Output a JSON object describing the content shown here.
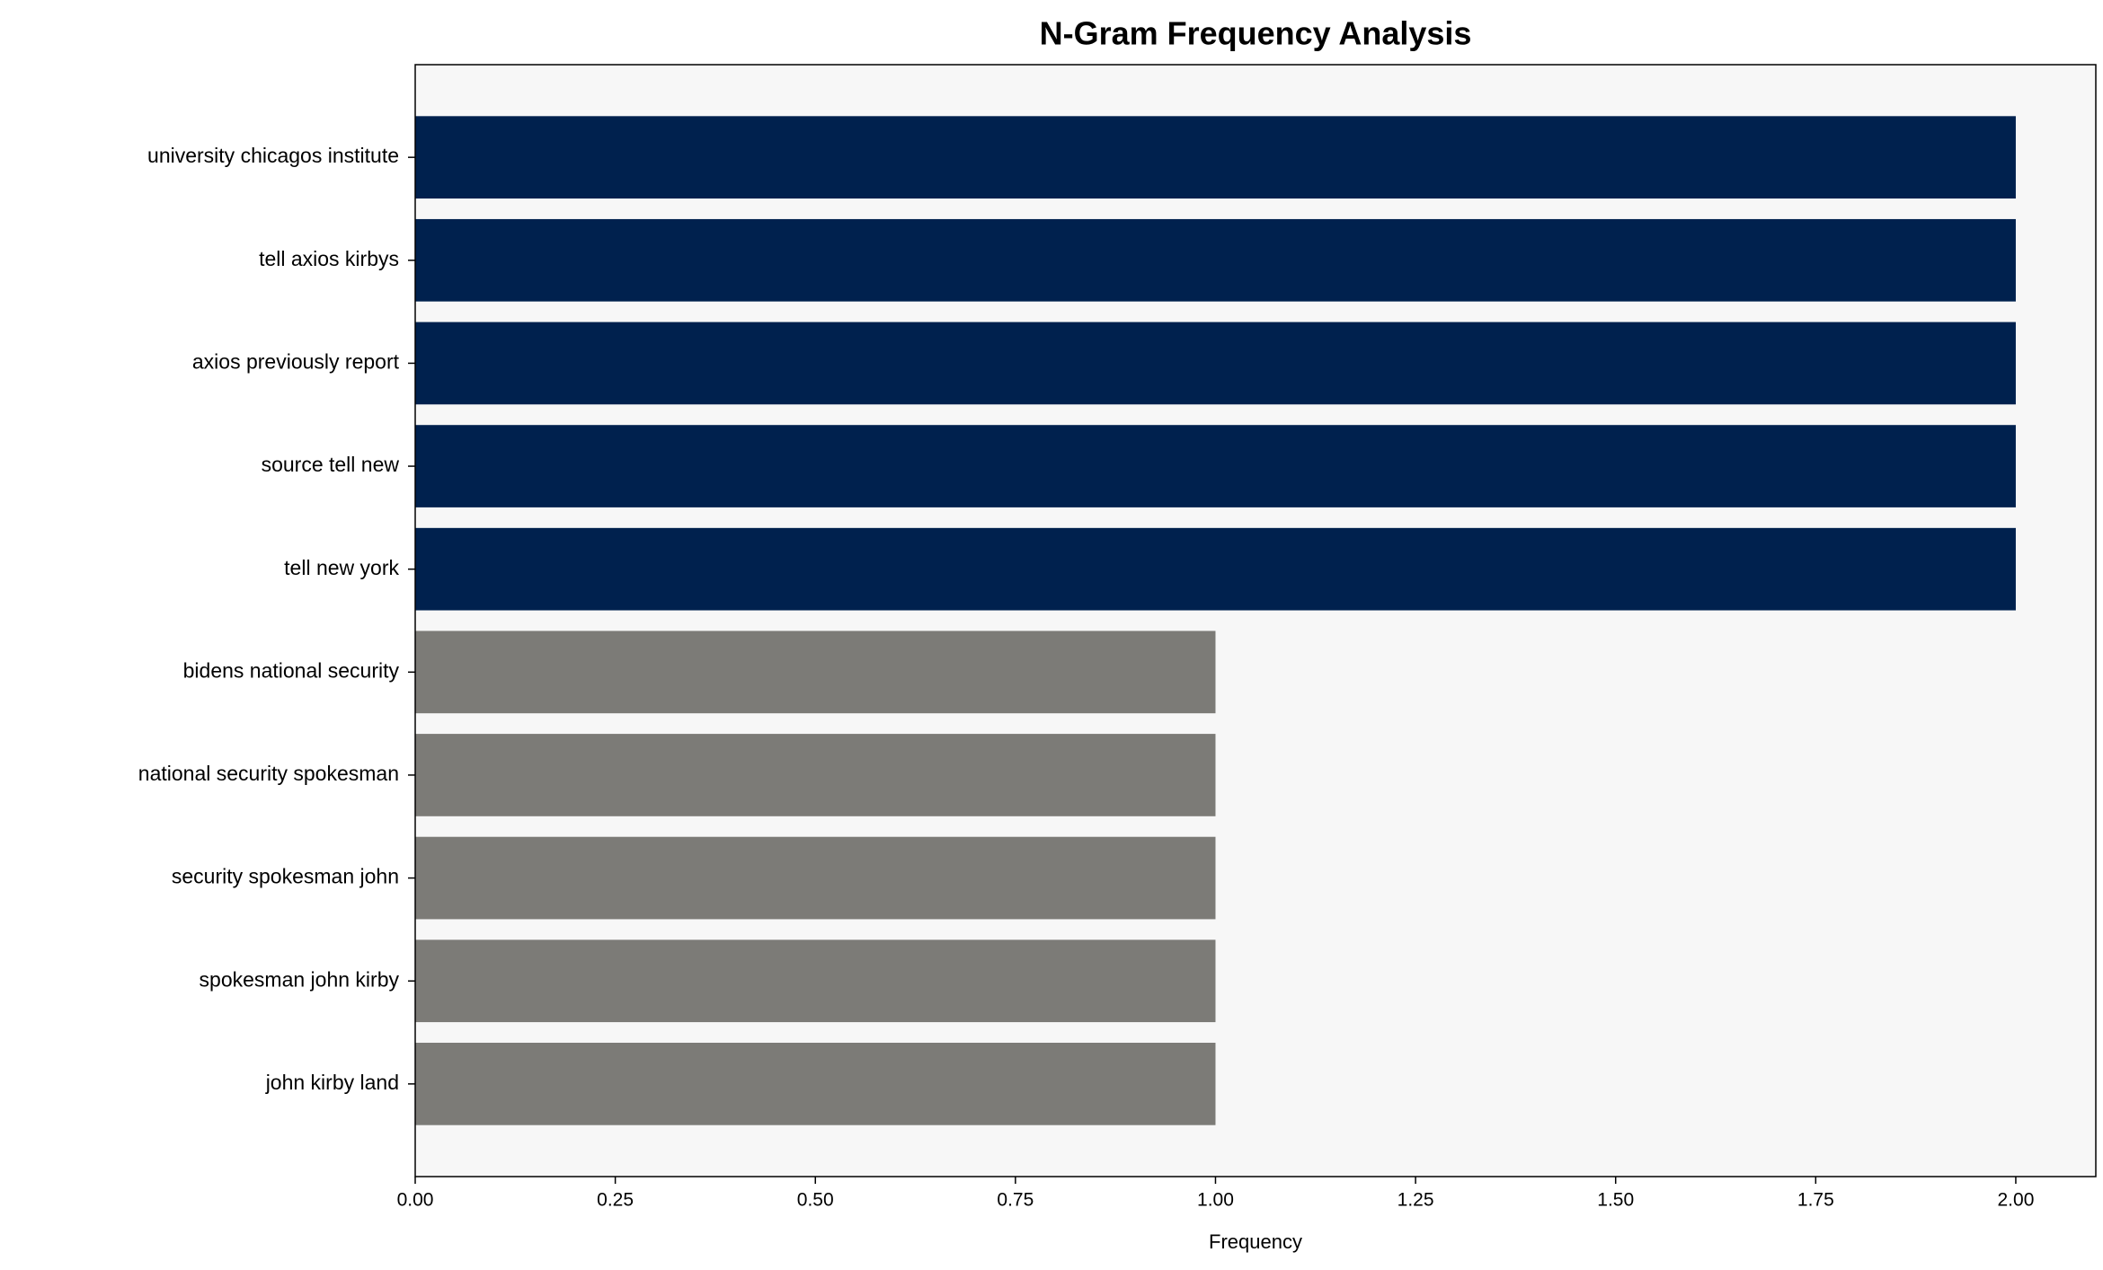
{
  "chart_data": {
    "type": "bar",
    "orientation": "horizontal",
    "title": "N-Gram Frequency Analysis",
    "xlabel": "Frequency",
    "categories": [
      "university chicagos institute",
      "tell axios kirbys",
      "axios previously report",
      "source tell new",
      "tell new york",
      "bidens national security",
      "national security spokesman",
      "security spokesman john",
      "spokesman john kirby",
      "john kirby land"
    ],
    "values": [
      2,
      2,
      2,
      2,
      2,
      1,
      1,
      1,
      1,
      1
    ],
    "colors": [
      "#00214e",
      "#00214e",
      "#00214e",
      "#00214e",
      "#00214e",
      "#7c7b77",
      "#7c7b77",
      "#7c7b77",
      "#7c7b77",
      "#7c7b77"
    ],
    "xlim": [
      0,
      2.1
    ],
    "xticks": [
      {
        "value": 0,
        "label": "0.00"
      },
      {
        "value": 0.25,
        "label": "0.25"
      },
      {
        "value": 0.5,
        "label": "0.50"
      },
      {
        "value": 0.75,
        "label": "0.75"
      },
      {
        "value": 1,
        "label": "1.00"
      },
      {
        "value": 1.25,
        "label": "1.25"
      },
      {
        "value": 1.5,
        "label": "1.50"
      },
      {
        "value": 1.75,
        "label": "1.75"
      },
      {
        "value": 2,
        "label": "2.00"
      }
    ],
    "grid": false,
    "background": "#f7f7f7"
  }
}
